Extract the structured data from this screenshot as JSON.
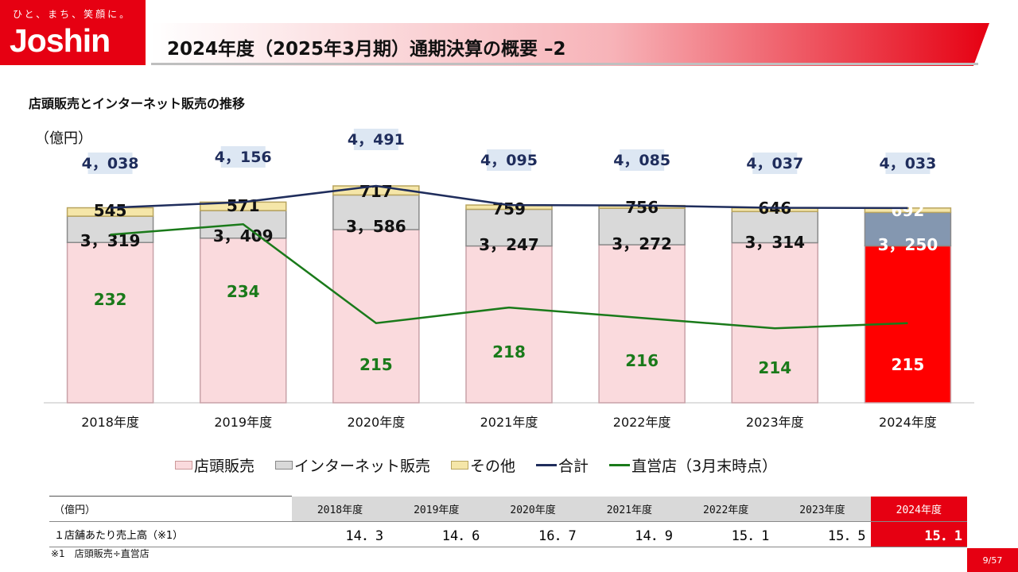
{
  "header": {
    "logo_tagline": "ひと、まち、笑顔に。",
    "logo_brand": "Joshin",
    "title": "2024年度（2025年3月期）通期決算の概要 –2",
    "accent_color": "#e60012"
  },
  "section_title": "店頭販売とインターネット販売の推移",
  "chart_data": {
    "type": "bar",
    "stacked": true,
    "unit_label": "（億円）",
    "categories": [
      "2018年度",
      "2019年度",
      "2020年度",
      "2021年度",
      "2022年度",
      "2023年度",
      "2024年度"
    ],
    "series": [
      {
        "name": "店頭販売",
        "values": [
          3319,
          3409,
          3586,
          3247,
          3272,
          3314,
          3250
        ],
        "labels": [
          "3，319",
          "3，409",
          "3，586",
          "3，247",
          "3，272",
          "3，314",
          "3，250"
        ],
        "color": "#fadadd",
        "highlight_color": "#ff0000"
      },
      {
        "name": "インターネット販売",
        "values": [
          545,
          571,
          717,
          759,
          756,
          646,
          692
        ],
        "labels": [
          "545",
          "571",
          "717",
          "759",
          "756",
          "646",
          "692"
        ],
        "color": "#d9d9d9",
        "highlight_color": "#8497b0"
      },
      {
        "name": "その他",
        "values": [
          174,
          176,
          188,
          89,
          57,
          77,
          91
        ],
        "color": "#f5e6a8"
      }
    ],
    "totals": {
      "name": "合計",
      "values": [
        4038,
        4156,
        4491,
        4095,
        4085,
        4037,
        4033
      ],
      "labels": [
        "4，038",
        "4，156",
        "4，491",
        "4，095",
        "4，085",
        "4，037",
        "4，033"
      ],
      "color": "#1f2d5c"
    },
    "stores": {
      "name": "直営店（3月末時点）",
      "values": [
        232,
        234,
        215,
        218,
        216,
        214,
        215
      ],
      "color": "#1a7a1a"
    },
    "highlight_index": 6,
    "grid": false,
    "legend_position": "bottom"
  },
  "table": {
    "unit": "（億円）",
    "years": [
      "2018年度",
      "2019年度",
      "2020年度",
      "2021年度",
      "2022年度",
      "2023年度",
      "2024年度"
    ],
    "row_label": "１店舗あたり売上高（※1）",
    "values": [
      "14．3",
      "14．6",
      "16．7",
      "14．9",
      "15．1",
      "15．5",
      "15．1"
    ]
  },
  "footnote": "※1　店頭販売÷直営店",
  "page_number": "9/57"
}
